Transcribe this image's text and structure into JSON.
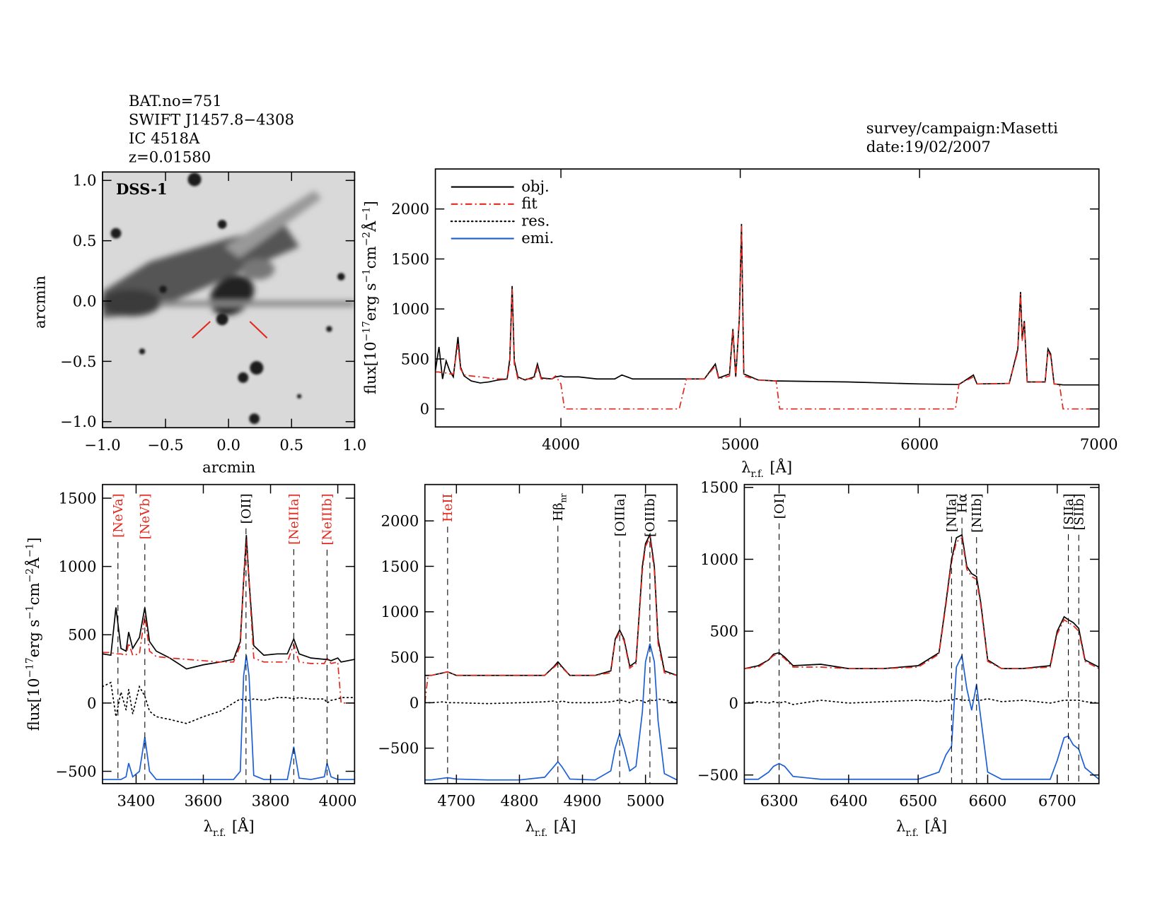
{
  "header": {
    "lines": [
      "BAT.no=751",
      "SWIFT J1457.8−4308",
      "IC 4518A",
      "z=0.01580"
    ],
    "survey": "survey/campaign:Masetti",
    "date": "date:19/02/2007"
  },
  "chart_data": [
    {
      "type": "image",
      "label": "DSS-1",
      "xlabel": "arcmin",
      "ylabel": "arcmin",
      "xlim": [
        -1.0,
        1.0
      ],
      "ylim": [
        -1.05,
        1.07
      ],
      "xticks": [
        {
          "value": -1.0,
          "label": "−1.0"
        },
        {
          "value": -0.5,
          "label": "−0.5"
        },
        {
          "value": 0,
          "label": "0.0"
        },
        0.5,
        {
          "value": 1.0,
          "label": "1.0"
        }
      ],
      "yticks": [
        {
          "value": -1.0,
          "label": "−1.0"
        },
        {
          "value": -0.5,
          "label": "−0.5"
        },
        {
          "value": 0,
          "label": "0.0"
        },
        0.5,
        {
          "value": 1.0,
          "label": "1.0"
        }
      ]
    },
    {
      "type": "line",
      "xlabel": [
        "λ",
        "r.f.",
        "[Å]"
      ],
      "ylabel": [
        "flux[10",
        "−17",
        "erg s",
        "−1",
        "cm",
        "−2",
        "Å",
        "−1",
        "]"
      ],
      "xlim": [
        3300,
        7000
      ],
      "ylim": [
        -180,
        2400
      ],
      "xticks": [
        4000,
        5000,
        6000,
        7000
      ],
      "yticks": [
        0,
        500,
        1000,
        1500,
        2000
      ],
      "legend": [
        {
          "name": "obj.",
          "color": "#000000",
          "style": "solid"
        },
        {
          "name": "fit",
          "color": "#e3281e",
          "style": "dashdot"
        },
        {
          "name": "res.",
          "color": "#000000",
          "style": "dotted"
        },
        {
          "name": "emi.",
          "color": "#1a5fd4",
          "style": "solid"
        }
      ],
      "x": [
        3300,
        3320,
        3340,
        3360,
        3380,
        3400,
        3426,
        3440,
        3460,
        3500,
        3550,
        3600,
        3650,
        3700,
        3715,
        3728,
        3740,
        3760,
        3800,
        3850,
        3869,
        3890,
        3950,
        3970,
        4000,
        4020,
        4100,
        4200,
        4300,
        4340,
        4400,
        4500,
        4600,
        4660,
        4700,
        4800,
        4861,
        4880,
        4940,
        4959,
        4975,
        4995,
        5007,
        5020,
        5100,
        5200,
        5220,
        5400,
        5600,
        5800,
        6000,
        6200,
        6220,
        6300,
        6320,
        6500,
        6548,
        6563,
        6572,
        6584,
        6600,
        6700,
        6716,
        6731,
        6750,
        6780,
        6800,
        7000
      ],
      "series": [
        {
          "color": "#000000",
          "style": "solid",
          "values": [
            380,
            620,
            300,
            480,
            380,
            320,
            720,
            420,
            330,
            280,
            260,
            270,
            290,
            300,
            500,
            1230,
            480,
            320,
            290,
            320,
            450,
            310,
            300,
            320,
            330,
            320,
            320,
            300,
            300,
            340,
            300,
            300,
            300,
            300,
            300,
            300,
            450,
            310,
            350,
            800,
            320,
            900,
            1850,
            350,
            290,
            280,
            280,
            275,
            270,
            260,
            250,
            245,
            245,
            340,
            250,
            255,
            600,
            1170,
            700,
            880,
            270,
            270,
            600,
            550,
            250,
            245,
            240,
            240
          ]
        },
        {
          "color": "#e3281e",
          "style": "dashdot",
          "values": [
            370,
            370,
            360,
            360,
            350,
            350,
            650,
            400,
            340,
            330,
            320,
            310,
            300,
            300,
            450,
            1200,
            450,
            300,
            300,
            300,
            420,
            300,
            300,
            330,
            250,
            0,
            0,
            0,
            0,
            0,
            0,
            0,
            0,
            0,
            300,
            300,
            430,
            300,
            330,
            780,
            320,
            880,
            1830,
            330,
            290,
            280,
            0,
            0,
            0,
            0,
            0,
            0,
            250,
            320,
            250,
            255,
            580,
            1150,
            680,
            860,
            270,
            270,
            580,
            530,
            250,
            245,
            0,
            0
          ]
        }
      ]
    },
    {
      "type": "line",
      "xlabel": [
        "λ",
        "r.f.",
        "[Å]"
      ],
      "ylabel": [
        "flux[10",
        "−17",
        "erg s",
        "−1",
        "cm",
        "−2",
        "Å",
        "−1",
        "]"
      ],
      "xlim": [
        3300,
        4050
      ],
      "ylim": [
        -590,
        1600
      ],
      "xticks": [
        3400,
        3600,
        3800,
        4000
      ],
      "yticks": [
        {
          "value": -500,
          "label": "−500"
        },
        0,
        500,
        1000,
        1500
      ],
      "x": [
        3300,
        3325,
        3340,
        3355,
        3370,
        3378,
        3390,
        3410,
        3426,
        3440,
        3460,
        3500,
        3550,
        3600,
        3650,
        3690,
        3710,
        3720,
        3728,
        3736,
        3750,
        3780,
        3820,
        3850,
        3869,
        3885,
        3920,
        3960,
        3968,
        3980,
        4000,
        4010,
        4050
      ],
      "series": [
        {
          "color": "#000000",
          "style": "solid",
          "values": [
            360,
            350,
            700,
            400,
            380,
            520,
            400,
            480,
            700,
            450,
            380,
            330,
            250,
            280,
            300,
            320,
            450,
            900,
            1230,
            900,
            420,
            350,
            360,
            360,
            470,
            360,
            330,
            320,
            320,
            310,
            330,
            300,
            320
          ]
        },
        {
          "color": "#e3281e",
          "style": "dashdot",
          "values": [
            370,
            370,
            360,
            360,
            350,
            440,
            350,
            360,
            640,
            380,
            340,
            330,
            320,
            310,
            300,
            300,
            420,
            880,
            1200,
            880,
            330,
            300,
            300,
            300,
            430,
            300,
            290,
            290,
            330,
            290,
            300,
            0,
            0
          ]
        },
        {
          "color": "#000000",
          "style": "dotted",
          "values": [
            120,
            150,
            -100,
            80,
            -50,
            100,
            -80,
            120,
            50,
            -60,
            -100,
            -120,
            -150,
            -100,
            -60,
            0,
            30,
            20,
            30,
            20,
            30,
            20,
            40,
            40,
            30,
            40,
            30,
            30,
            0,
            20,
            30,
            40,
            40
          ]
        },
        {
          "color": "#1a5fd4",
          "style": "solid",
          "values": [
            -560,
            -560,
            -560,
            -560,
            -540,
            -440,
            -540,
            -500,
            -250,
            -500,
            -560,
            -560,
            -560,
            -560,
            -560,
            -560,
            -500,
            200,
            350,
            200,
            -530,
            -560,
            -560,
            -560,
            -320,
            -550,
            -560,
            -540,
            -440,
            -540,
            -560,
            -560,
            -560
          ]
        }
      ],
      "lines": [
        {
          "x": 3346,
          "label": "[NeVa]",
          "color": "#e3281e"
        },
        {
          "x": 3426,
          "label": "[NeVb]",
          "color": "#e3281e"
        },
        {
          "x": 3727,
          "label": "[OII]",
          "color": "#000000"
        },
        {
          "x": 3869,
          "label": "[NeIIIa]",
          "color": "#e3281e"
        },
        {
          "x": 3968,
          "label": "[NeIIIb]",
          "color": "#e3281e"
        }
      ]
    },
    {
      "type": "line",
      "xlabel": [
        "λ",
        "r.f.",
        "[Å]"
      ],
      "xlim": [
        4650,
        5050
      ],
      "ylim": [
        -890,
        2400
      ],
      "xticks": [
        4700,
        4800,
        4900,
        5000
      ],
      "yticks": [
        {
          "value": -500,
          "label": "−500"
        },
        0,
        500,
        1000,
        1500,
        2000
      ],
      "x": [
        4650,
        4655,
        4660,
        4680,
        4686,
        4700,
        4750,
        4800,
        4840,
        4855,
        4861,
        4867,
        4880,
        4920,
        4945,
        4952,
        4959,
        4966,
        4975,
        4985,
        4995,
        5000,
        5007,
        5014,
        5020,
        5030,
        5050
      ],
      "series": [
        {
          "color": "#000000",
          "style": "solid",
          "values": [
            300,
            300,
            300,
            330,
            340,
            300,
            300,
            300,
            300,
            400,
            450,
            400,
            300,
            300,
            350,
            700,
            800,
            700,
            400,
            450,
            1500,
            1750,
            1850,
            1500,
            700,
            350,
            300
          ]
        },
        {
          "color": "#e3281e",
          "style": "dashdot",
          "values": [
            0,
            300,
            300,
            330,
            340,
            300,
            300,
            300,
            300,
            390,
            430,
            390,
            300,
            300,
            330,
            680,
            780,
            680,
            380,
            430,
            1450,
            1720,
            1820,
            1450,
            650,
            330,
            300
          ]
        },
        {
          "color": "#000000",
          "style": "dotted",
          "values": [
            0,
            0,
            0,
            10,
            0,
            0,
            -10,
            0,
            10,
            20,
            0,
            20,
            0,
            0,
            10,
            20,
            30,
            20,
            0,
            30,
            20,
            0,
            30,
            20,
            40,
            30,
            0
          ]
        },
        {
          "color": "#1a5fd4",
          "style": "solid",
          "values": [
            -850,
            -850,
            -850,
            -830,
            -825,
            -840,
            -850,
            -850,
            -820,
            -700,
            -650,
            -700,
            -840,
            -850,
            -750,
            -500,
            -340,
            -500,
            -750,
            -700,
            -100,
            450,
            650,
            450,
            -200,
            -780,
            -850
          ]
        }
      ],
      "lines": [
        {
          "x": 4686,
          "label": "HeII",
          "color": "#e3281e"
        },
        {
          "x": 4861,
          "label": "Hβ",
          "sub": "nr",
          "color": "#000000"
        },
        {
          "x": 4959,
          "label": "[OIIIa]",
          "color": "#000000"
        },
        {
          "x": 5007,
          "label": "[OIIIb]",
          "color": "#000000"
        }
      ]
    },
    {
      "type": "line",
      "xlabel": [
        "λ",
        "r.f.",
        "[Å]"
      ],
      "xlim": [
        6250,
        6760
      ],
      "ylim": [
        -560,
        1520
      ],
      "xticks": [
        6300,
        6400,
        6500,
        6600,
        6700
      ],
      "yticks": [
        {
          "value": -500,
          "label": "−500"
        },
        0,
        500,
        1000,
        1500
      ],
      "x": [
        6250,
        6270,
        6285,
        6292,
        6300,
        6308,
        6320,
        6360,
        6400,
        6450,
        6500,
        6530,
        6540,
        6548,
        6555,
        6563,
        6570,
        6577,
        6584,
        6590,
        6600,
        6620,
        6650,
        6690,
        6700,
        6710,
        6716,
        6723,
        6731,
        6740,
        6760
      ],
      "series": [
        {
          "color": "#000000",
          "style": "solid",
          "values": [
            240,
            260,
            300,
            340,
            350,
            320,
            260,
            270,
            240,
            240,
            260,
            350,
            700,
            1000,
            1150,
            1170,
            950,
            900,
            880,
            700,
            300,
            240,
            240,
            260,
            500,
            600,
            580,
            560,
            520,
            300,
            250
          ]
        },
        {
          "color": "#e3281e",
          "style": "dashdot",
          "values": [
            240,
            250,
            300,
            330,
            340,
            310,
            250,
            250,
            240,
            240,
            250,
            340,
            680,
            980,
            1120,
            1150,
            930,
            880,
            860,
            680,
            290,
            240,
            240,
            250,
            480,
            580,
            560,
            540,
            500,
            290,
            240
          ]
        },
        {
          "color": "#000000",
          "style": "dotted",
          "values": [
            0,
            10,
            0,
            10,
            0,
            10,
            -10,
            20,
            0,
            10,
            20,
            10,
            20,
            20,
            30,
            20,
            20,
            20,
            20,
            20,
            30,
            10,
            20,
            0,
            10,
            20,
            20,
            20,
            20,
            10,
            0
          ]
        },
        {
          "color": "#1a5fd4",
          "style": "solid",
          "values": [
            -530,
            -530,
            -480,
            -440,
            -420,
            -440,
            -510,
            -530,
            -530,
            -530,
            -530,
            -480,
            -360,
            -300,
            250,
            330,
            100,
            -50,
            130,
            -100,
            -480,
            -530,
            -530,
            -530,
            -400,
            -240,
            -230,
            -290,
            -320,
            -450,
            -530
          ]
        }
      ],
      "lines": [
        {
          "x": 6300,
          "label": "[OI]",
          "color": "#000000"
        },
        {
          "x": 6548,
          "label": "[NIIa]",
          "color": "#000000"
        },
        {
          "x": 6563,
          "label": "Hα",
          "color": "#000000"
        },
        {
          "x": 6584,
          "label": "[NIIb]",
          "color": "#000000"
        },
        {
          "x": 6716,
          "label": "[SIIa]",
          "color": "#000000"
        },
        {
          "x": 6731,
          "label": "[SIIb]",
          "color": "#000000"
        }
      ]
    }
  ]
}
